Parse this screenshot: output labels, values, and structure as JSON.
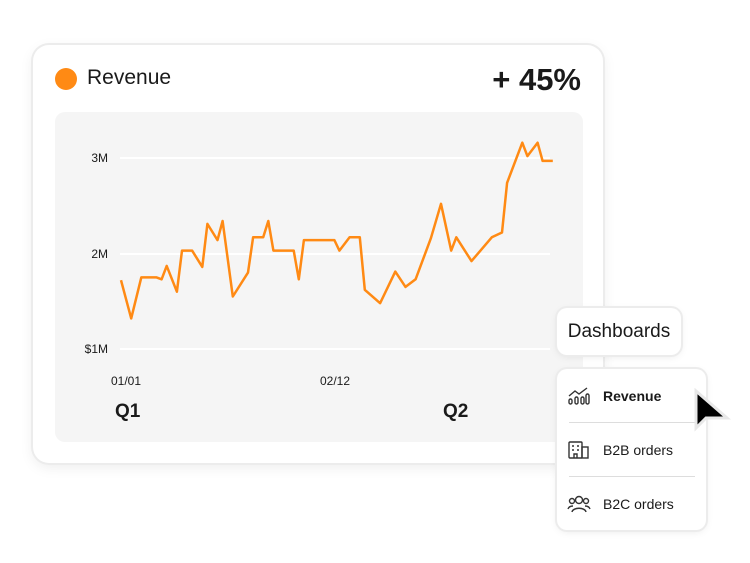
{
  "card": {
    "title": "Revenue",
    "delta": "+ 45%",
    "accent": "#ff8a14"
  },
  "chart_data": {
    "type": "line",
    "y_ticks": [
      "3M",
      "2M",
      "$1M"
    ],
    "x_ticks": [
      "01/01",
      "02/12"
    ],
    "quarters": [
      "Q1",
      "Q2"
    ],
    "ylim_millions": [
      1,
      3
    ],
    "grid": true,
    "series": [
      {
        "color": "#ff8a14",
        "x": [
          "01/01",
          "01/03",
          "01/05",
          "01/08",
          "01/09",
          "01/10",
          "01/12",
          "01/13",
          "01/15",
          "01/17",
          "01/18",
          "01/20",
          "01/21",
          "01/23",
          "01/26",
          "01/27",
          "01/29",
          "01/30",
          "01/31",
          "02/04",
          "02/05",
          "02/06",
          "02/12",
          "02/13",
          "02/15",
          "02/17",
          "02/18",
          "02/21",
          "02/24",
          "02/26",
          "02/28",
          "03/03",
          "03/05",
          "03/07",
          "03/08",
          "03/11",
          "03/15",
          "03/17",
          "03/18",
          "03/21",
          "03/22",
          "03/24",
          "03/25",
          "03/27"
        ],
        "y_millions": [
          1.72,
          1.32,
          1.75,
          1.75,
          1.73,
          1.87,
          1.6,
          2.03,
          2.03,
          1.86,
          2.31,
          2.14,
          2.34,
          1.55,
          1.8,
          2.17,
          2.17,
          2.34,
          2.03,
          2.03,
          1.73,
          2.14,
          2.14,
          2.03,
          2.17,
          2.17,
          1.62,
          1.48,
          1.81,
          1.65,
          1.73,
          2.16,
          2.52,
          2.03,
          2.17,
          1.92,
          2.17,
          2.22,
          2.74,
          3.16,
          3.02,
          3.16,
          2.97,
          2.97
        ]
      }
    ]
  },
  "dashboards": {
    "label": "Dashboards"
  },
  "menu": {
    "items": [
      {
        "label": "Revenue",
        "icon": "chart-icon",
        "selected": true
      },
      {
        "label": "B2B orders",
        "icon": "building-icon"
      },
      {
        "label": "B2C orders",
        "icon": "users-icon"
      }
    ]
  }
}
